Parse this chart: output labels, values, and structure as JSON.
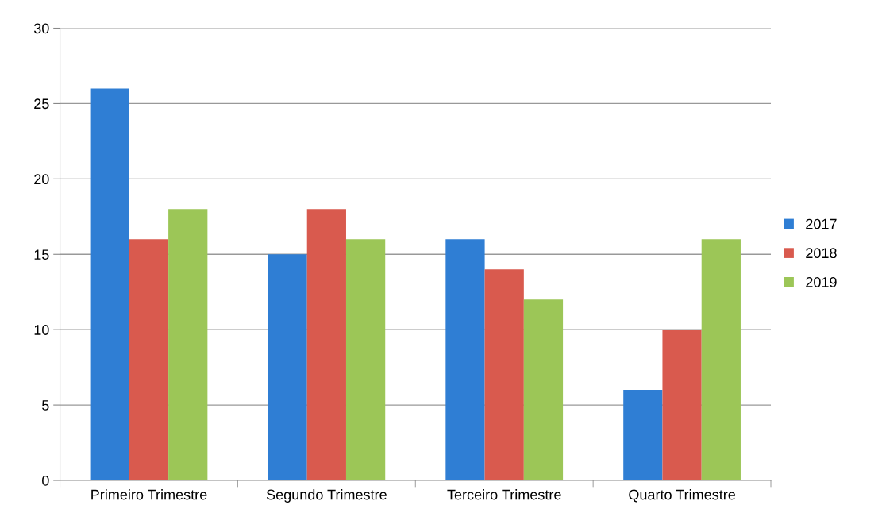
{
  "chart_data": {
    "type": "bar",
    "categories": [
      "Primeiro Trimestre",
      "Segundo Trimestre",
      "Terceiro Trimestre",
      "Quarto Trimestre"
    ],
    "series": [
      {
        "name": "2017",
        "color": "#2f7ed4",
        "values": [
          26,
          15,
          16,
          6
        ]
      },
      {
        "name": "2018",
        "color": "#d95a4e",
        "values": [
          16,
          18,
          14,
          10
        ]
      },
      {
        "name": "2019",
        "color": "#9cc657",
        "values": [
          18,
          16,
          12,
          16
        ]
      }
    ],
    "ylim": [
      0,
      30
    ],
    "yticks": [
      0,
      5,
      10,
      15,
      20,
      25,
      30
    ],
    "grid": "y",
    "legend": "right"
  }
}
